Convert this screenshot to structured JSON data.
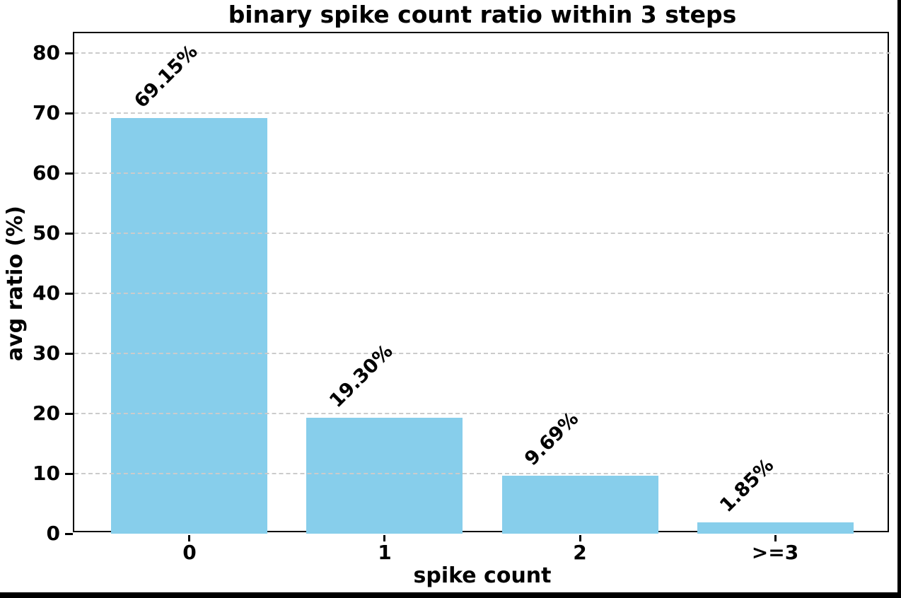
{
  "chart_data": {
    "type": "bar",
    "title": "binary spike count ratio within 3 steps",
    "xlabel": "spike count",
    "ylabel": "avg ratio (%)",
    "categories": [
      "0",
      "1",
      "2",
      ">=3"
    ],
    "values": [
      69.15,
      19.3,
      9.69,
      1.85
    ],
    "bar_labels": [
      "69.15%",
      "19.30%",
      "9.69%",
      "1.85%"
    ],
    "bar_label_rotation_deg": 45,
    "yticks": [
      0,
      10,
      20,
      30,
      40,
      50,
      60,
      70,
      80
    ],
    "ylim": [
      0,
      83.3
    ],
    "grid": "horizontal dashed, drawn over bars",
    "legend": "none",
    "colors": {
      "bar": "#87CEEB",
      "gridline": "#cbcbcb",
      "spine": "#000000",
      "text": "#000000",
      "background": "#ffffff",
      "frame_border": "#000000"
    }
  }
}
